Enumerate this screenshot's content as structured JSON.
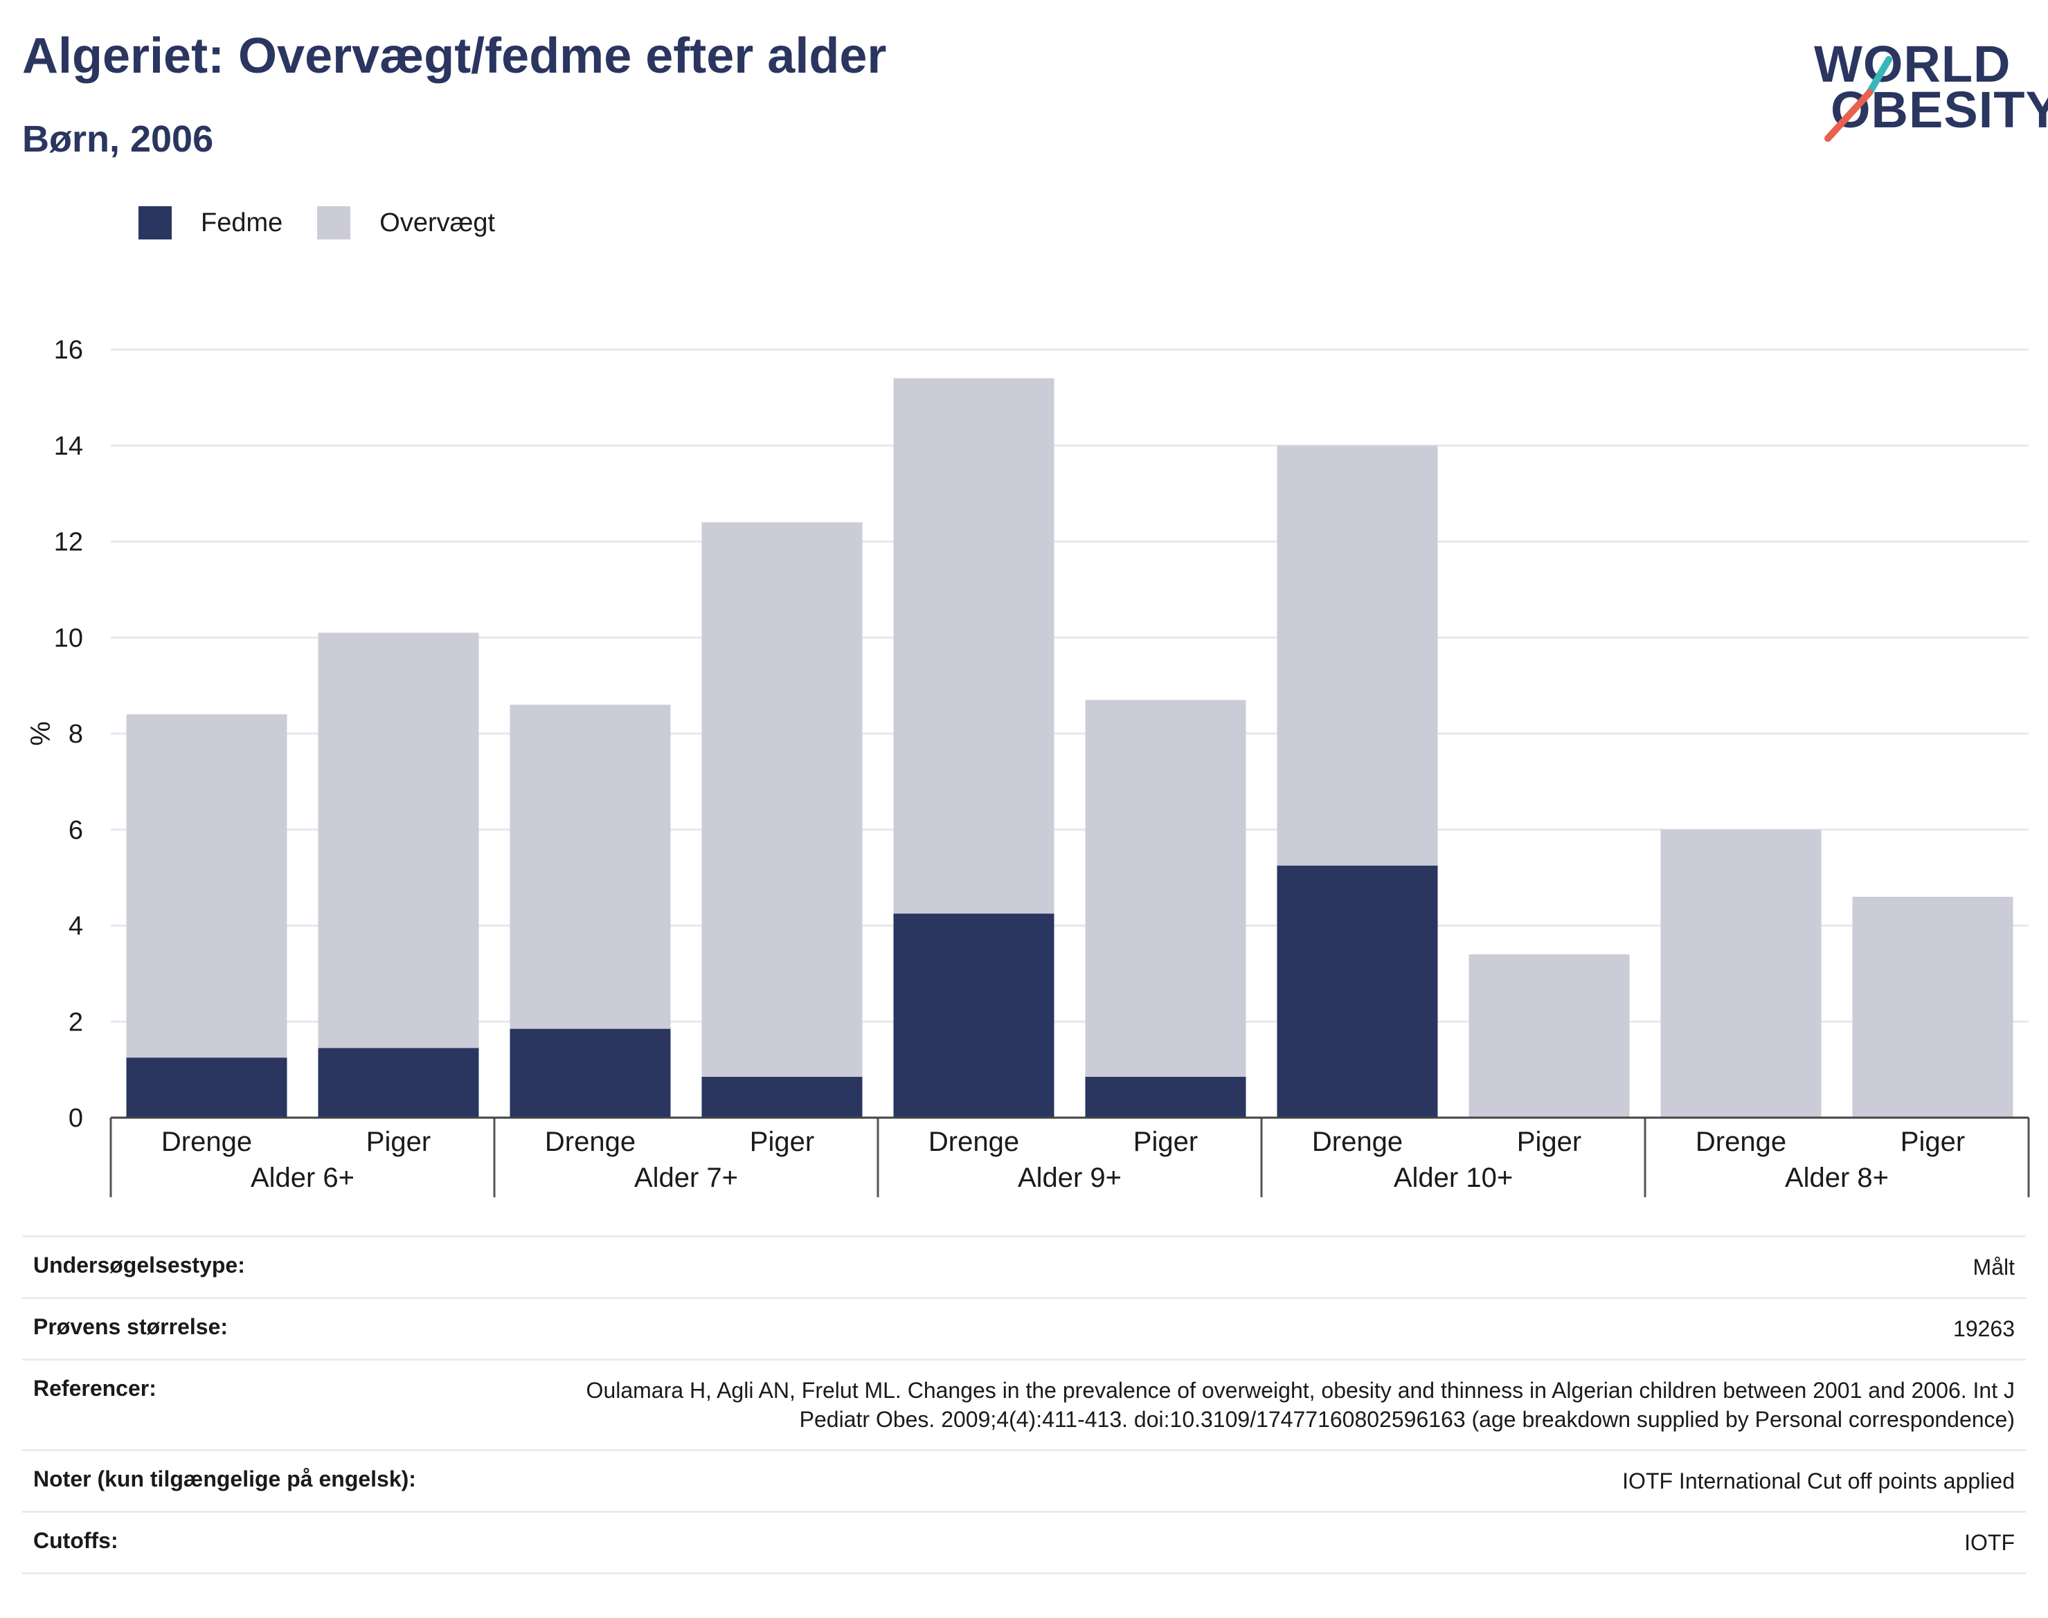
{
  "header": {
    "title": "Algeriet: Overvægt/fedme efter alder",
    "subtitle": "Børn, 2006"
  },
  "logo": {
    "line1": "WORLD",
    "line2": "OBESITY",
    "slash_top_color": "#36b6b8",
    "slash_bottom_color": "#e8614e"
  },
  "legend": {
    "items": [
      {
        "label": "Fedme",
        "color": "#2a3560"
      },
      {
        "label": "Overvægt",
        "color": "#cbccd7"
      }
    ]
  },
  "chart_data": {
    "type": "bar",
    "stacked": true,
    "ylabel": "%",
    "ylim": [
      0,
      16
    ],
    "yticks": [
      0,
      2,
      4,
      6,
      8,
      10,
      12,
      14,
      16
    ],
    "grid": true,
    "legend_position": "top-left",
    "groups": [
      {
        "label": "Alder 6+",
        "bars": [
          {
            "label": "Drenge",
            "fedme": 1.25,
            "total": 8.4
          },
          {
            "label": "Piger",
            "fedme": 1.45,
            "total": 10.1
          }
        ]
      },
      {
        "label": "Alder 7+",
        "bars": [
          {
            "label": "Drenge",
            "fedme": 1.85,
            "total": 8.6
          },
          {
            "label": "Piger",
            "fedme": 0.85,
            "total": 12.4
          }
        ]
      },
      {
        "label": "Alder 9+",
        "bars": [
          {
            "label": "Drenge",
            "fedme": 4.25,
            "total": 15.4
          },
          {
            "label": "Piger",
            "fedme": 0.85,
            "total": 8.7
          }
        ]
      },
      {
        "label": "Alder 10+",
        "bars": [
          {
            "label": "Drenge",
            "fedme": 5.25,
            "total": 14.0
          },
          {
            "label": "Piger",
            "fedme": 0,
            "total": 3.4
          }
        ]
      },
      {
        "label": "Alder 8+",
        "bars": [
          {
            "label": "Drenge",
            "fedme": 0,
            "total": 6.0
          },
          {
            "label": "Piger",
            "fedme": 0,
            "total": 4.6
          }
        ]
      }
    ],
    "colors": {
      "fedme": "#2a3560",
      "overvaegt": "#cbccd7"
    }
  },
  "meta": {
    "rows": [
      {
        "key": "Undersøgelsestype:",
        "value": "Målt"
      },
      {
        "key": "Prøvens størrelse:",
        "value": "19263"
      },
      {
        "key": "Referencer:",
        "value": "Oulamara H, Agli AN, Frelut ML. Changes in the prevalence of overweight, obesity and thinness in Algerian children between 2001 and 2006. Int J Pediatr Obes. 2009;4(4):411-413. doi:10.3109/17477160802596163 (age breakdown supplied by Personal correspondence)"
      },
      {
        "key": "Noter (kun tilgængelige på engelsk):",
        "value": "IOTF International Cut off points applied"
      },
      {
        "key": "Cutoffs:",
        "value": "IOTF"
      }
    ]
  }
}
